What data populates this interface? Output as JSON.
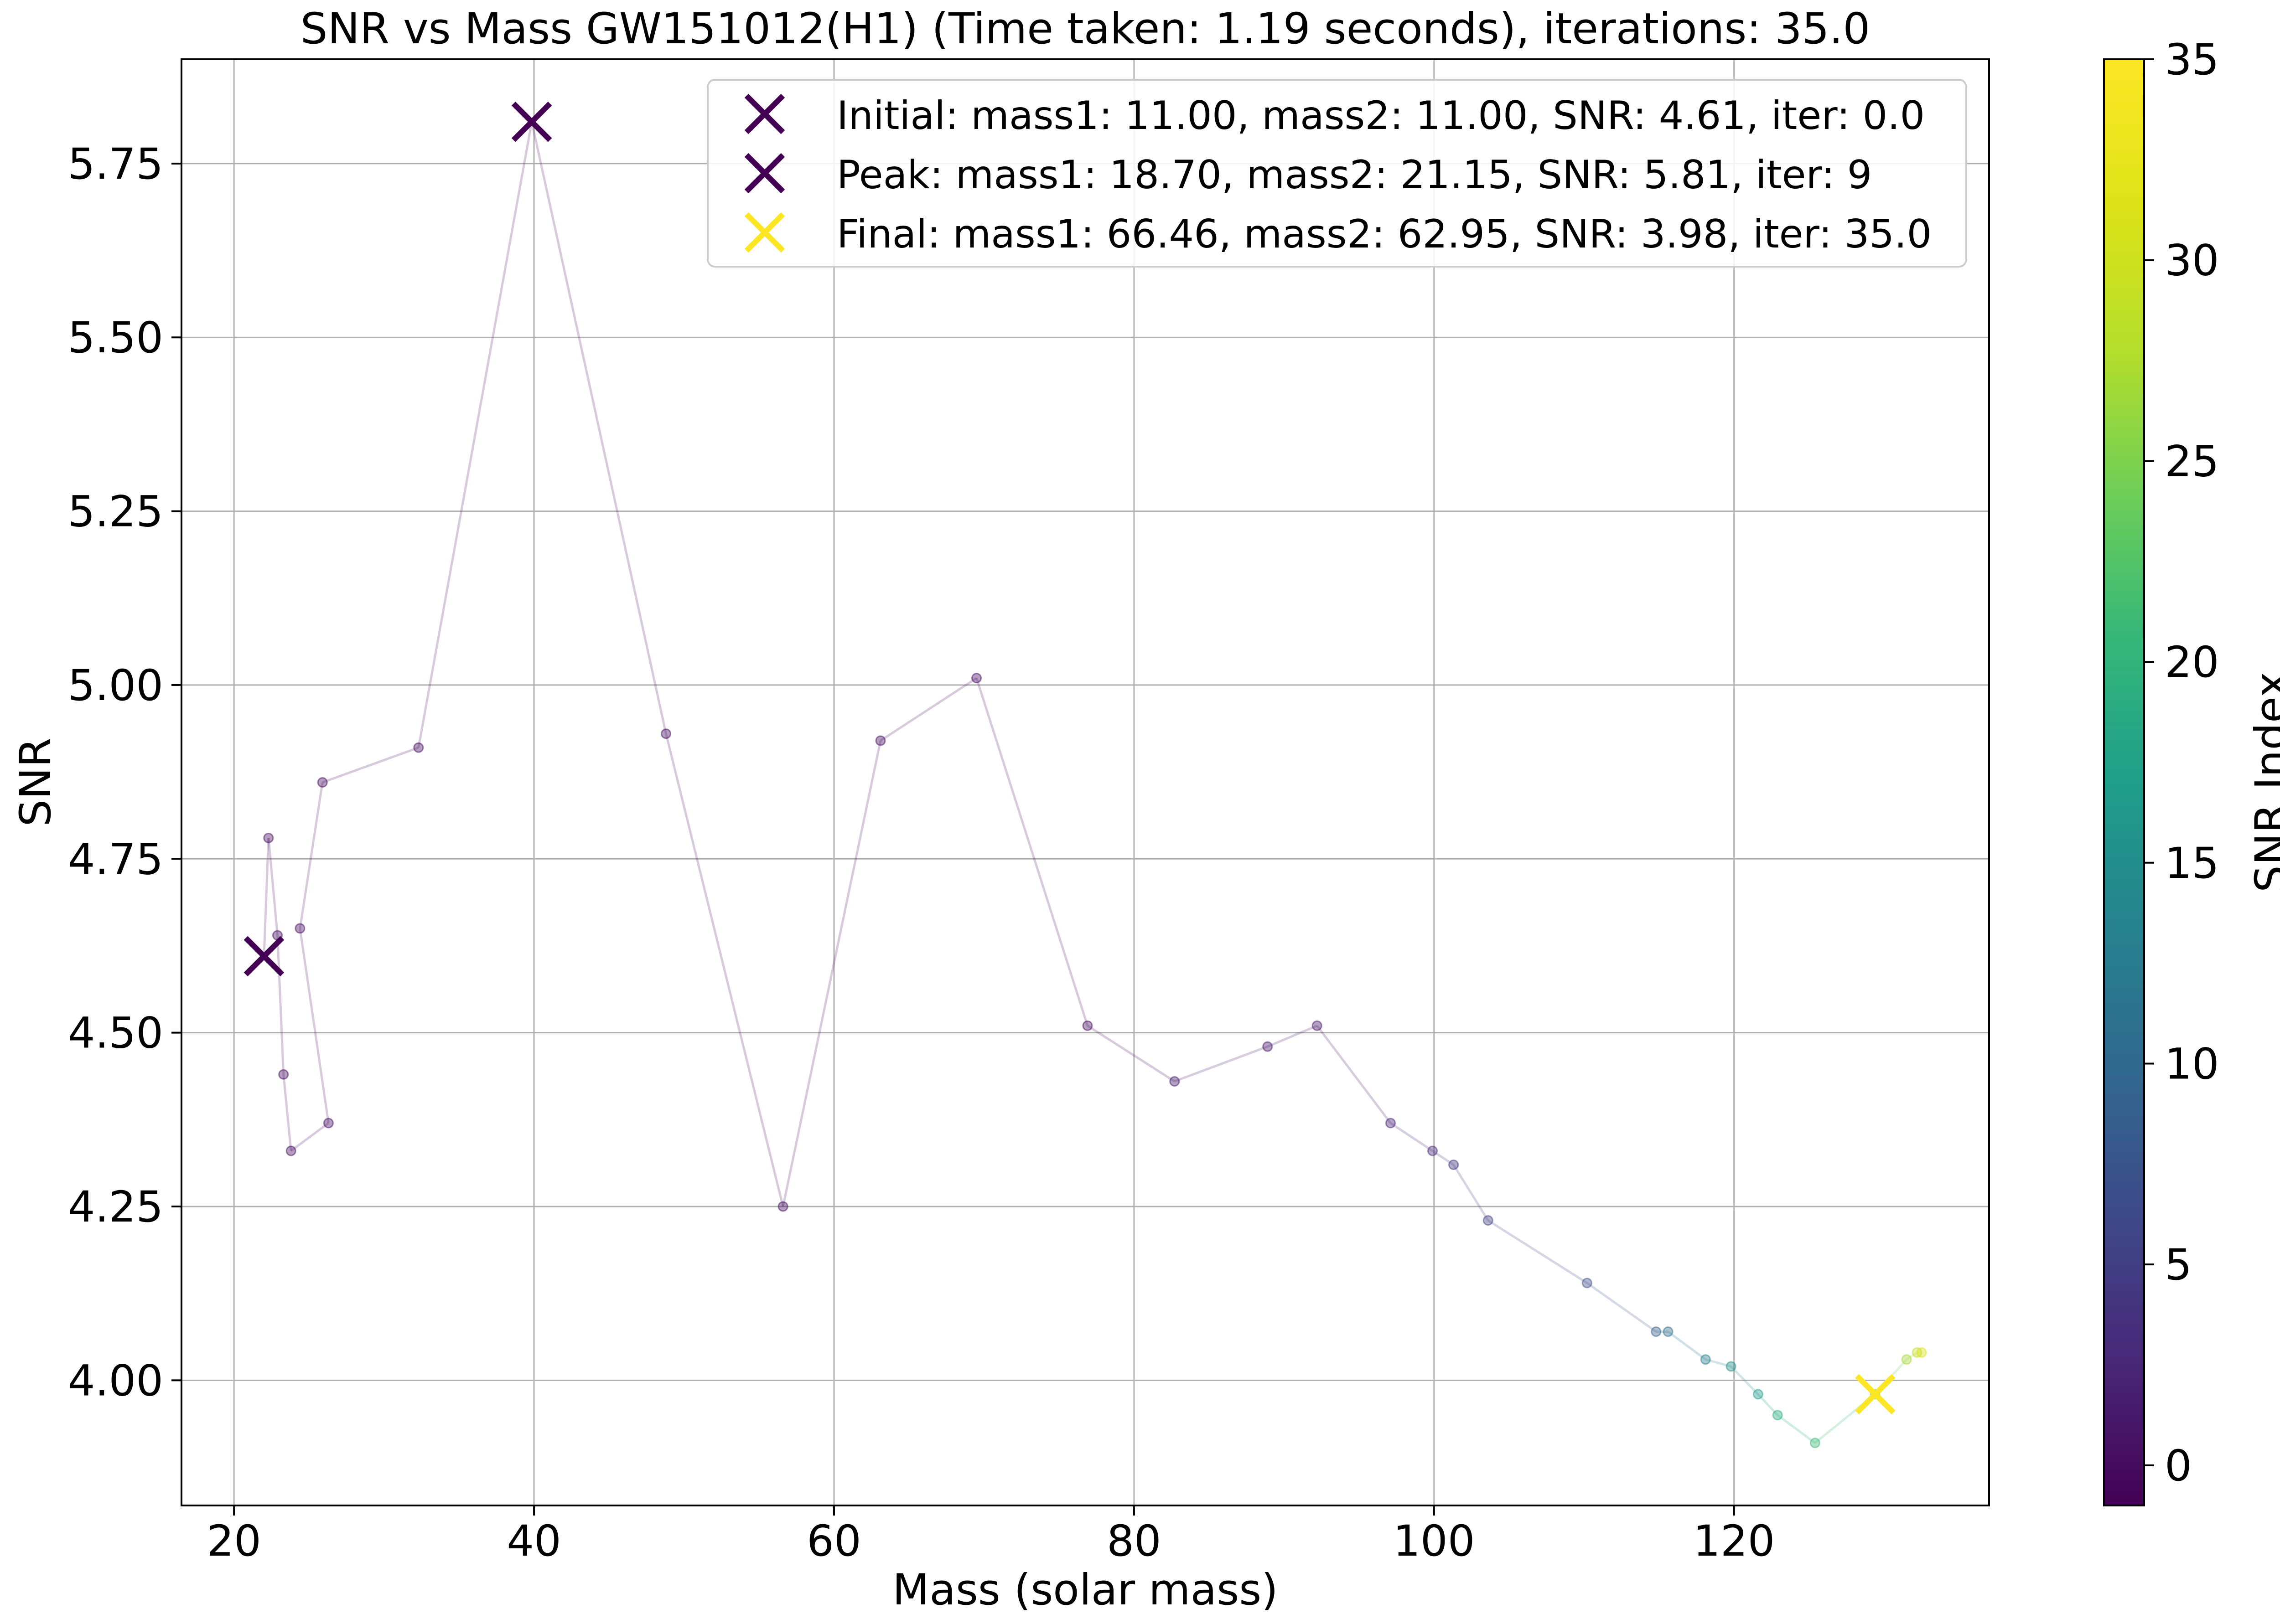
{
  "chart_data": {
    "type": "scatter",
    "title": "SNR vs Mass GW151012(H1) (Time taken: 1.19 seconds), iterations: 35.0",
    "xlabel": "Mass (solar mass)",
    "ylabel": "SNR",
    "xlim": [
      16.5,
      137
    ],
    "ylim": [
      3.82,
      5.9
    ],
    "xticks": [
      20,
      40,
      60,
      80,
      100,
      120
    ],
    "yticks": [
      4.0,
      4.25,
      4.5,
      4.75,
      5.0,
      5.25,
      5.5,
      5.75
    ],
    "xtick_labels": [
      "20",
      "40",
      "60",
      "80",
      "100",
      "120"
    ],
    "ytick_labels": [
      "4.00",
      "4.25",
      "4.50",
      "4.75",
      "5.00",
      "5.25",
      "5.50",
      "5.75"
    ],
    "grid": true,
    "legend_position": "upper right",
    "colorbar": {
      "label": "SNR Index",
      "colormap": "viridis",
      "range": [
        -1,
        35
      ],
      "ticks": [
        0,
        5,
        10,
        15,
        20,
        25,
        30,
        35
      ],
      "tick_labels": [
        "0",
        "5",
        "10",
        "15",
        "20",
        "25",
        "30",
        "35"
      ]
    },
    "legend": [
      {
        "label": "Initial: mass1: 11.00, mass2: 11.00, SNR: 4.61, iter: 0.0",
        "color": "#440154"
      },
      {
        "label": "Peak: mass1: 18.70, mass2: 21.15, SNR: 5.81, iter: 9",
        "color": "#440154"
      },
      {
        "label": "Final: mass1: 66.46, mass2: 62.95, SNR: 3.98, iter: 35.0",
        "color": "#fde725"
      }
    ],
    "markers": [
      {
        "name": "initial",
        "x": 22.0,
        "y": 4.61,
        "color": "#440154"
      },
      {
        "name": "peak",
        "x": 39.85,
        "y": 5.81,
        "color": "#440154"
      },
      {
        "name": "final",
        "x": 129.41,
        "y": 3.98,
        "color": "#fde725"
      }
    ],
    "points": [
      {
        "x": 22.3,
        "y": 4.78,
        "c": 0
      },
      {
        "x": 22.9,
        "y": 4.64,
        "c": 0
      },
      {
        "x": 23.3,
        "y": 4.44,
        "c": 0
      },
      {
        "x": 23.8,
        "y": 4.33,
        "c": 0
      },
      {
        "x": 26.3,
        "y": 4.37,
        "c": 0
      },
      {
        "x": 24.4,
        "y": 4.65,
        "c": 0
      },
      {
        "x": 25.9,
        "y": 4.86,
        "c": 0
      },
      {
        "x": 32.3,
        "y": 4.91,
        "c": 0
      },
      {
        "x": 48.8,
        "y": 4.93,
        "c": 0
      },
      {
        "x": 56.6,
        "y": 4.25,
        "c": 0
      },
      {
        "x": 63.1,
        "y": 4.92,
        "c": 0
      },
      {
        "x": 69.5,
        "y": 5.01,
        "c": 0
      },
      {
        "x": 76.9,
        "y": 4.51,
        "c": 0
      },
      {
        "x": 82.7,
        "y": 4.43,
        "c": 1
      },
      {
        "x": 88.9,
        "y": 4.48,
        "c": 1
      },
      {
        "x": 92.2,
        "y": 4.51,
        "c": 1
      },
      {
        "x": 97.1,
        "y": 4.37,
        "c": 2
      },
      {
        "x": 99.9,
        "y": 4.33,
        "c": 3
      },
      {
        "x": 101.3,
        "y": 4.31,
        "c": 4
      },
      {
        "x": 103.6,
        "y": 4.23,
        "c": 5
      },
      {
        "x": 110.2,
        "y": 4.14,
        "c": 7
      },
      {
        "x": 114.8,
        "y": 4.07,
        "c": 9
      },
      {
        "x": 115.6,
        "y": 4.07,
        "c": 11
      },
      {
        "x": 118.1,
        "y": 4.03,
        "c": 13
      },
      {
        "x": 119.8,
        "y": 4.02,
        "c": 15
      },
      {
        "x": 121.6,
        "y": 3.98,
        "c": 17
      },
      {
        "x": 122.9,
        "y": 3.95,
        "c": 19
      },
      {
        "x": 125.4,
        "y": 3.91,
        "c": 21
      },
      {
        "x": 129.4,
        "y": 3.98,
        "c": 24
      },
      {
        "x": 131.5,
        "y": 4.03,
        "c": 27
      },
      {
        "x": 132.2,
        "y": 4.04,
        "c": 29
      },
      {
        "x": 132.5,
        "y": 4.04,
        "c": 31
      }
    ]
  }
}
